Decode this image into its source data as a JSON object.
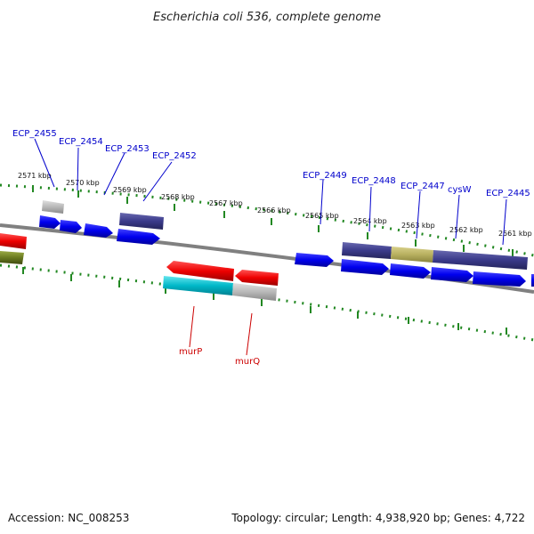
{
  "title": "Escherichia coli 536, complete genome",
  "footer": {
    "accession": "Accession: NC_008253",
    "topology": "Topology: circular; Length: 4,938,920 bp; Genes: 4,722"
  },
  "kbp_labels": [
    "2571 kbp",
    "2570 kbp",
    "2569 kbp",
    "2568 kbp",
    "2567 kbp",
    "2566 kbp",
    "2565 kbp",
    "2564 kbp",
    "2563 kbp",
    "2562 kbp",
    "2561 kbp"
  ],
  "genes_top": [
    "ECP_2455",
    "ECP_2454",
    "ECP_2453",
    "ECP_2452",
    "ECP_2449",
    "ECP_2448",
    "ECP_2447",
    "cysW",
    "ECP_2445"
  ],
  "genes_bottom": [
    "murP",
    "murQ"
  ],
  "colors": {
    "forward": "#0000ee",
    "reverse": "#ee0000",
    "cds_band": "#3a3a8a",
    "olive_band": "#b8b060",
    "cyan": "#00b8c8",
    "grey": "#b0b0b0",
    "backbone": "#808080",
    "ticks": "#228822"
  }
}
